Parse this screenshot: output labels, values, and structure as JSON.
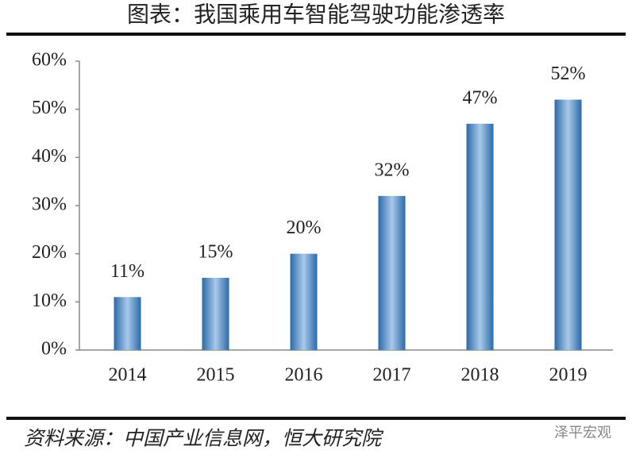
{
  "chart_data": {
    "type": "bar",
    "title": "图表：我国乘用车智能驾驶功能渗透率",
    "source": "资料来源：中国产业信息网，恒大研究院",
    "watermark": "泽平宏观",
    "categories": [
      "2014",
      "2015",
      "2016",
      "2017",
      "2018",
      "2019"
    ],
    "values": [
      11,
      15,
      20,
      32,
      47,
      52
    ],
    "value_labels": [
      "11%",
      "15%",
      "20%",
      "32%",
      "47%",
      "52%"
    ],
    "color": "#3a7dbf",
    "ylim": [
      0,
      60
    ],
    "yticks": [
      {
        "value": 0,
        "label": "0%"
      },
      {
        "value": 10,
        "label": "10%"
      },
      {
        "value": 20,
        "label": "20%"
      },
      {
        "value": 30,
        "label": "30%"
      },
      {
        "value": 40,
        "label": "40%"
      },
      {
        "value": 50,
        "label": "50%"
      },
      {
        "value": 60,
        "label": "60%"
      }
    ],
    "grid": false
  }
}
